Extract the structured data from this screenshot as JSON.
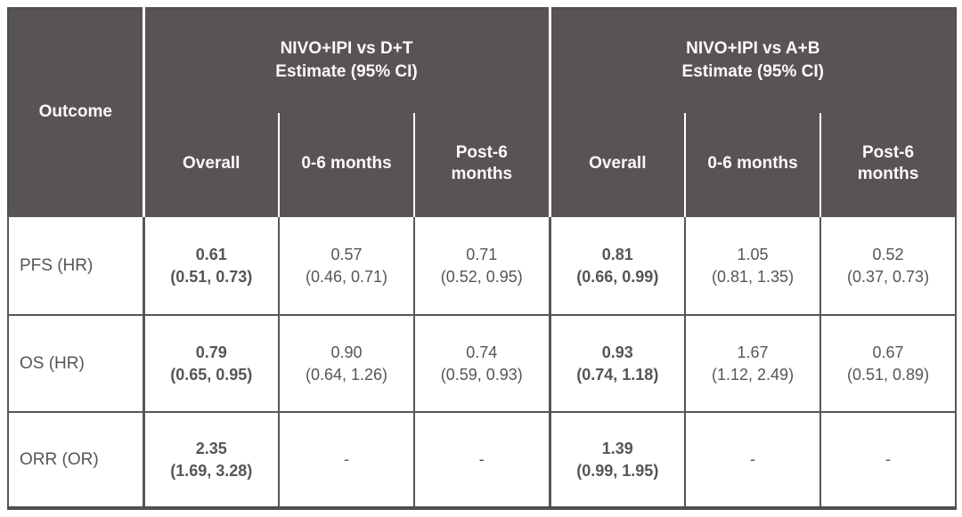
{
  "colors": {
    "header_bg": "#595454",
    "header_text": "#fbfaf9",
    "body_text": "#595454",
    "grid_line": "#595556",
    "outer_border": "#524e4d",
    "header_divider": "#ffffff",
    "page_bg": "#ffffff"
  },
  "table": {
    "outcome_header": "Outcome",
    "groups": [
      {
        "title_line1": "NIVO+IPI vs D+T",
        "title_line2": "Estimate (95% CI)"
      },
      {
        "title_line1": "NIVO+IPI vs A+B",
        "title_line2": "Estimate (95% CI)"
      }
    ],
    "subcolumns": [
      "Overall",
      "0-6 months",
      "Post-6 months",
      "Overall",
      "0-6 months",
      "Post-6 months"
    ],
    "rows": [
      {
        "outcome": "PFS (HR)",
        "cells": [
          {
            "est": "0.61",
            "ci": "(0.51, 0.73)"
          },
          {
            "est": "0.57",
            "ci": "(0.46, 0.71)"
          },
          {
            "est": "0.71",
            "ci": "(0.52, 0.95)"
          },
          {
            "est": "0.81",
            "ci": "(0.66, 0.99)"
          },
          {
            "est": "1.05",
            "ci": "(0.81, 1.35)"
          },
          {
            "est": "0.52",
            "ci": "(0.37, 0.73)"
          }
        ]
      },
      {
        "outcome": "OS (HR)",
        "cells": [
          {
            "est": "0.79",
            "ci": "(0.65, 0.95)"
          },
          {
            "est": "0.90",
            "ci": "(0.64, 1.26)"
          },
          {
            "est": "0.74",
            "ci": "(0.59, 0.93)"
          },
          {
            "est": "0.93",
            "ci": "(0.74, 1.18)"
          },
          {
            "est": "1.67",
            "ci": "(1.12, 2.49)"
          },
          {
            "est": "0.67",
            "ci": "(0.51, 0.89)"
          }
        ]
      },
      {
        "outcome": "ORR (OR)",
        "cells": [
          {
            "est": "2.35",
            "ci": "(1.69, 3.28)"
          },
          {
            "est": "-",
            "ci": ""
          },
          {
            "est": "-",
            "ci": ""
          },
          {
            "est": "1.39",
            "ci": "(0.99, 1.95)"
          },
          {
            "est": "-",
            "ci": ""
          },
          {
            "est": "-",
            "ci": ""
          }
        ]
      }
    ]
  },
  "chart_data": {
    "type": "table",
    "title": "",
    "columns": [
      "Outcome",
      "NIVO+IPI vs D+T Estimate (95% CI) — Overall",
      "NIVO+IPI vs D+T Estimate (95% CI) — 0-6 months",
      "NIVO+IPI vs D+T Estimate (95% CI) — Post-6 months",
      "NIVO+IPI vs A+B Estimate (95% CI) — Overall",
      "NIVO+IPI vs A+B Estimate (95% CI) — 0-6 months",
      "NIVO+IPI vs A+B Estimate (95% CI) — Post-6 months"
    ],
    "rows": [
      [
        "PFS (HR)",
        "0.61 (0.51, 0.73)",
        "0.57 (0.46, 0.71)",
        "0.71 (0.52, 0.95)",
        "0.81 (0.66, 0.99)",
        "1.05 (0.81, 1.35)",
        "0.52 (0.37, 0.73)"
      ],
      [
        "OS (HR)",
        "0.79 (0.65, 0.95)",
        "0.90 (0.64, 1.26)",
        "0.74 (0.59, 0.93)",
        "0.93 (0.74, 1.18)",
        "1.67 (1.12, 2.49)",
        "0.67 (0.51, 0.89)"
      ],
      [
        "ORR (OR)",
        "2.35 (1.69, 3.28)",
        "-",
        "-",
        "1.39 (0.99, 1.95)",
        "-",
        "-"
      ]
    ]
  }
}
